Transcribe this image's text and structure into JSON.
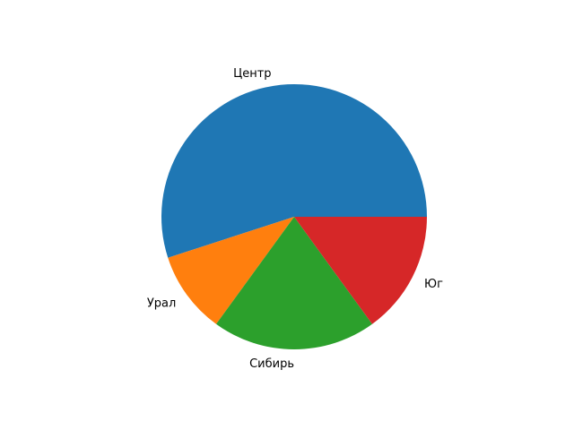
{
  "chart_data": {
    "type": "pie",
    "title": "",
    "categories": [
      "Центр",
      "Урал",
      "Сибирь",
      "Юг"
    ],
    "values": [
      55,
      10,
      20,
      15
    ],
    "colors": [
      "#1f77b4",
      "#ff7f0e",
      "#2ca02c",
      "#d62728"
    ],
    "start_angle_deg": 0,
    "direction": "counterclockwise",
    "legend": "none"
  }
}
